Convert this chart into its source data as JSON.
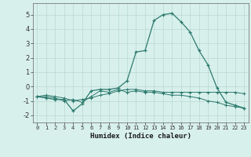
{
  "xlabel": "Humidex (Indice chaleur)",
  "x_values": [
    0,
    1,
    2,
    3,
    4,
    5,
    6,
    7,
    8,
    9,
    10,
    11,
    12,
    13,
    14,
    15,
    16,
    17,
    18,
    19,
    20,
    21,
    22,
    23
  ],
  "line1": [
    -0.7,
    -0.8,
    -0.9,
    -0.9,
    -1.7,
    -1.2,
    -0.3,
    -0.2,
    -0.2,
    -0.1,
    0.4,
    2.4,
    2.5,
    4.6,
    5.0,
    5.1,
    4.5,
    3.8,
    2.5,
    1.5,
    -0.1,
    -1.1,
    -1.3,
    -1.5
  ],
  "line2": [
    -0.7,
    -0.7,
    -0.8,
    -1.0,
    -0.9,
    -1.1,
    -0.7,
    -0.3,
    -0.4,
    -0.2,
    -0.4,
    -0.3,
    -0.4,
    -0.4,
    -0.5,
    -0.6,
    -0.6,
    -0.7,
    -0.8,
    -1.0,
    -1.1,
    -1.3,
    -1.4,
    -1.5
  ],
  "line3": [
    -0.7,
    -0.6,
    -0.7,
    -0.8,
    -1.0,
    -0.9,
    -0.8,
    -0.6,
    -0.5,
    -0.3,
    -0.2,
    -0.2,
    -0.3,
    -0.3,
    -0.4,
    -0.4,
    -0.4,
    -0.4,
    -0.4,
    -0.4,
    -0.4,
    -0.4,
    -0.4,
    -0.5
  ],
  "line_color": "#2d7a6e",
  "bg_color": "#d8f0ec",
  "grid_color": "#b8d8d0",
  "ylim": [
    -2.5,
    5.8
  ],
  "yticks": [
    -2,
    -1,
    0,
    1,
    2,
    3,
    4,
    5
  ],
  "xticks": [
    0,
    1,
    2,
    3,
    4,
    5,
    6,
    7,
    8,
    9,
    10,
    11,
    12,
    13,
    14,
    15,
    16,
    17,
    18,
    19,
    20,
    21,
    22,
    23
  ],
  "xlim": [
    -0.5,
    23.5
  ]
}
